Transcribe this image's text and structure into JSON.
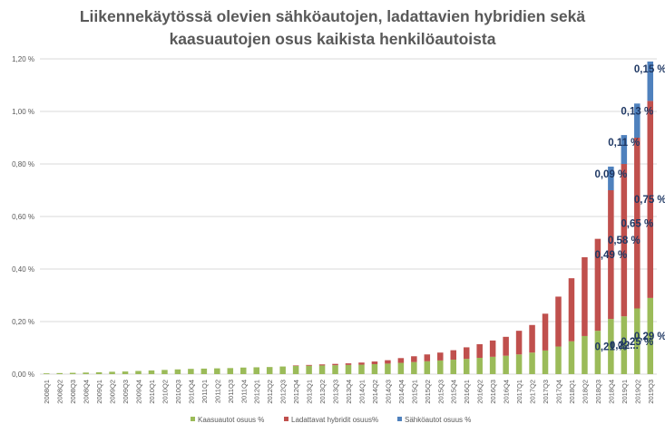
{
  "chart_data": {
    "type": "bar",
    "stacked": true,
    "title_lines": [
      "Liikennekäytössä olevien sähköautojen, ladattavien hybridien sekä",
      "kaasuautojen osus kaikista henkilöautoista"
    ],
    "categories": [
      "2008Q1",
      "2008Q2",
      "2008Q3",
      "2008Q4",
      "2009Q1",
      "2009Q2",
      "2009Q3",
      "2009Q4",
      "2010Q1",
      "2010Q2",
      "2010Q3",
      "2010Q4",
      "2011Q1",
      "2011Q2",
      "2011Q3",
      "2011Q4",
      "2012Q1",
      "2012Q2",
      "2012Q3",
      "2012Q4",
      "2013Q1",
      "2013Q2",
      "2013Q3",
      "2013Q4",
      "2014Q1",
      "2014Q2",
      "2014Q3",
      "2014Q4",
      "2015Q1",
      "2015Q2",
      "2015Q3",
      "2015Q4",
      "2016Q1",
      "2016Q2",
      "2016Q3",
      "2016Q4",
      "2017Q1",
      "2017Q2",
      "2017Q3",
      "2017Q4",
      "2018Q1",
      "2018Q2",
      "2018Q3",
      "2018Q4",
      "2019Q1",
      "2019Q2",
      "2019Q3"
    ],
    "series": [
      {
        "name": "Kaasuautot osuus %",
        "color": "#9BBB59",
        "values": [
          0.003,
          0.004,
          0.005,
          0.006,
          0.007,
          0.009,
          0.01,
          0.012,
          0.014,
          0.016,
          0.018,
          0.02,
          0.021,
          0.022,
          0.023,
          0.025,
          0.026,
          0.027,
          0.029,
          0.031,
          0.032,
          0.033,
          0.034,
          0.035,
          0.036,
          0.038,
          0.04,
          0.043,
          0.046,
          0.049,
          0.052,
          0.055,
          0.058,
          0.062,
          0.066,
          0.07,
          0.075,
          0.082,
          0.09,
          0.105,
          0.125,
          0.145,
          0.165,
          0.21,
          0.22,
          0.25,
          0.29
        ]
      },
      {
        "name": "Ladattavat hybridit osuus%",
        "color": "#C0504D",
        "values": [
          0,
          0,
          0,
          0,
          0,
          0,
          0,
          0,
          0,
          0,
          0,
          0,
          0,
          0,
          0,
          0,
          0,
          0,
          0,
          0.002,
          0.003,
          0.004,
          0.005,
          0.006,
          0.008,
          0.01,
          0.013,
          0.018,
          0.022,
          0.026,
          0.03,
          0.036,
          0.044,
          0.052,
          0.062,
          0.072,
          0.09,
          0.105,
          0.14,
          0.19,
          0.24,
          0.3,
          0.35,
          0.49,
          0.58,
          0.65,
          0.75
        ]
      },
      {
        "name": "Sähköautot osuus %",
        "color": "#4F81BD",
        "values": [
          0,
          0,
          0,
          0,
          0,
          0,
          0,
          0,
          0,
          0,
          0,
          0,
          0,
          0,
          0,
          0,
          0,
          0,
          0,
          0,
          0,
          0,
          0,
          0,
          0,
          0,
          0,
          0,
          0,
          0,
          0,
          0,
          0,
          0,
          0,
          0,
          0,
          0,
          0,
          0,
          0,
          0,
          0,
          0.09,
          0.11,
          0.13,
          0.15
        ]
      }
    ],
    "ylim": [
      0,
      1.2
    ],
    "yticks": [
      "0,00 %",
      "0,20 %",
      "0,40 %",
      "0,60 %",
      "0,80 %",
      "1,00 %",
      "1,20 %"
    ],
    "grid": true,
    "legend_position": "bottom",
    "data_labels": [
      {
        "series": 0,
        "category": "2018Q4",
        "text": "0,21 %"
      },
      {
        "series": 0,
        "category": "2019Q1",
        "text": "0,22..."
      },
      {
        "series": 0,
        "category": "2019Q2",
        "text": "0,25 %"
      },
      {
        "series": 0,
        "category": "2019Q3",
        "text": "0,29 %"
      },
      {
        "series": 1,
        "category": "2018Q4",
        "text": "0,49 %"
      },
      {
        "series": 1,
        "category": "2019Q1",
        "text": "0,58 %"
      },
      {
        "series": 1,
        "category": "2019Q2",
        "text": "0,65 %"
      },
      {
        "series": 1,
        "category": "2019Q3",
        "text": "0,75 %"
      },
      {
        "series": 2,
        "category": "2018Q4",
        "text": "0,09 %"
      },
      {
        "series": 2,
        "category": "2019Q1",
        "text": "0,11 %"
      },
      {
        "series": 2,
        "category": "2019Q2",
        "text": "0,13 %"
      },
      {
        "series": 2,
        "category": "2019Q3",
        "text": "0,15 %"
      }
    ],
    "label_color": "#1F3864",
    "grid_color": "#D9D9D9",
    "axis_text_color": "#595959"
  }
}
